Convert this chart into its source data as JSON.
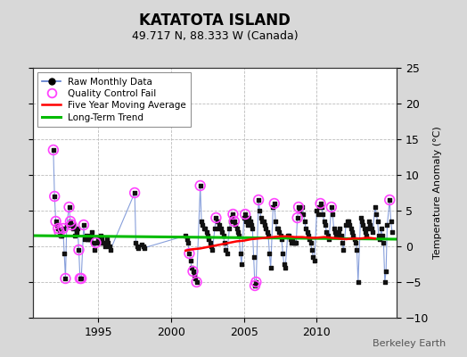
{
  "title": "KATATOTA ISLAND",
  "subtitle": "49.717 N, 88.333 W (Canada)",
  "ylabel": "Temperature Anomaly (°C)",
  "watermark": "Berkeley Earth",
  "ylim": [
    -10,
    25
  ],
  "yticks": [
    -10,
    -5,
    0,
    5,
    10,
    15,
    20,
    25
  ],
  "xlim": [
    1990.5,
    2015.5
  ],
  "xticks": [
    1995,
    2000,
    2005,
    2010
  ],
  "bg_color": "#d8d8d8",
  "plot_bg_color": "#ffffff",
  "raw_line_color": "#5577cc",
  "raw_line_alpha": 0.7,
  "raw_dot_color": "#111111",
  "qc_fail_color": "#ff44ff",
  "moving_avg_color": "#ff0000",
  "trend_color": "#00bb00",
  "raw_monthly_data": [
    [
      1991.917,
      13.5
    ],
    [
      1992.0,
      7.0
    ],
    [
      1992.083,
      3.5
    ],
    [
      1992.167,
      3.0
    ],
    [
      1992.25,
      2.5
    ],
    [
      1992.333,
      2.0
    ],
    [
      1992.417,
      1.5
    ],
    [
      1992.5,
      1.5
    ],
    [
      1992.583,
      2.5
    ],
    [
      1992.667,
      -1.0
    ],
    [
      1992.75,
      -4.5
    ],
    [
      1992.833,
      3.0
    ],
    [
      1993.0,
      5.5
    ],
    [
      1993.083,
      3.5
    ],
    [
      1993.167,
      3.0
    ],
    [
      1993.25,
      2.5
    ],
    [
      1993.333,
      3.0
    ],
    [
      1993.417,
      1.5
    ],
    [
      1993.5,
      2.0
    ],
    [
      1993.583,
      2.5
    ],
    [
      1993.667,
      -0.5
    ],
    [
      1993.75,
      -4.5
    ],
    [
      1993.833,
      -4.5
    ],
    [
      1994.0,
      3.0
    ],
    [
      1994.083,
      1.0
    ],
    [
      1994.167,
      1.5
    ],
    [
      1994.25,
      1.0
    ],
    [
      1994.333,
      1.0
    ],
    [
      1994.417,
      1.0
    ],
    [
      1994.5,
      1.5
    ],
    [
      1994.583,
      2.0
    ],
    [
      1994.667,
      0.5
    ],
    [
      1994.75,
      -0.5
    ],
    [
      1994.833,
      0.5
    ],
    [
      1995.0,
      1.0
    ],
    [
      1995.083,
      0.5
    ],
    [
      1995.167,
      1.5
    ],
    [
      1995.25,
      1.0
    ],
    [
      1995.333,
      0.5
    ],
    [
      1995.417,
      0.5
    ],
    [
      1995.5,
      0.0
    ],
    [
      1995.583,
      1.0
    ],
    [
      1995.667,
      0.5
    ],
    [
      1995.75,
      0.0
    ],
    [
      1995.833,
      -0.5
    ],
    [
      1997.5,
      7.5
    ],
    [
      1997.583,
      0.5
    ],
    [
      1997.667,
      0.0
    ],
    [
      1997.75,
      -0.3
    ],
    [
      1998.0,
      0.2
    ],
    [
      1998.083,
      0.0
    ],
    [
      1998.167,
      -0.2
    ],
    [
      2001.0,
      1.5
    ],
    [
      2001.083,
      1.0
    ],
    [
      2001.167,
      0.5
    ],
    [
      2001.25,
      -1.0
    ],
    [
      2001.333,
      -2.0
    ],
    [
      2001.417,
      -3.0
    ],
    [
      2001.5,
      -3.5
    ],
    [
      2001.583,
      -4.0
    ],
    [
      2001.667,
      -4.5
    ],
    [
      2001.75,
      -5.0
    ],
    [
      2002.0,
      8.5
    ],
    [
      2002.083,
      3.5
    ],
    [
      2002.167,
      3.0
    ],
    [
      2002.25,
      2.5
    ],
    [
      2002.333,
      2.5
    ],
    [
      2002.417,
      2.0
    ],
    [
      2002.5,
      1.5
    ],
    [
      2002.583,
      1.0
    ],
    [
      2002.667,
      0.5
    ],
    [
      2002.75,
      0.0
    ],
    [
      2002.833,
      -0.5
    ],
    [
      2003.0,
      2.5
    ],
    [
      2003.083,
      4.0
    ],
    [
      2003.167,
      3.5
    ],
    [
      2003.25,
      2.5
    ],
    [
      2003.333,
      3.0
    ],
    [
      2003.417,
      2.5
    ],
    [
      2003.5,
      2.0
    ],
    [
      2003.583,
      1.5
    ],
    [
      2003.667,
      0.5
    ],
    [
      2003.75,
      -0.5
    ],
    [
      2003.833,
      -1.0
    ],
    [
      2004.0,
      2.5
    ],
    [
      2004.083,
      3.5
    ],
    [
      2004.167,
      4.0
    ],
    [
      2004.25,
      4.5
    ],
    [
      2004.333,
      3.5
    ],
    [
      2004.417,
      3.0
    ],
    [
      2004.5,
      2.5
    ],
    [
      2004.583,
      2.0
    ],
    [
      2004.667,
      1.5
    ],
    [
      2004.75,
      -1.0
    ],
    [
      2004.833,
      -2.5
    ],
    [
      2005.0,
      4.0
    ],
    [
      2005.083,
      4.5
    ],
    [
      2005.167,
      3.5
    ],
    [
      2005.25,
      3.0
    ],
    [
      2005.333,
      4.0
    ],
    [
      2005.417,
      3.5
    ],
    [
      2005.5,
      3.0
    ],
    [
      2005.583,
      2.5
    ],
    [
      2005.667,
      -1.5
    ],
    [
      2005.75,
      -5.5
    ],
    [
      2005.833,
      -5.0
    ],
    [
      2006.0,
      6.5
    ],
    [
      2006.083,
      5.0
    ],
    [
      2006.167,
      4.0
    ],
    [
      2006.25,
      3.5
    ],
    [
      2006.333,
      3.5
    ],
    [
      2006.417,
      3.0
    ],
    [
      2006.5,
      2.5
    ],
    [
      2006.583,
      2.0
    ],
    [
      2006.667,
      1.5
    ],
    [
      2006.75,
      -1.0
    ],
    [
      2006.833,
      -3.0
    ],
    [
      2007.0,
      5.5
    ],
    [
      2007.083,
      6.0
    ],
    [
      2007.167,
      3.5
    ],
    [
      2007.25,
      2.5
    ],
    [
      2007.333,
      2.5
    ],
    [
      2007.417,
      2.0
    ],
    [
      2007.5,
      1.5
    ],
    [
      2007.583,
      1.0
    ],
    [
      2007.667,
      -1.0
    ],
    [
      2007.75,
      -2.5
    ],
    [
      2007.833,
      -3.0
    ],
    [
      2008.0,
      1.5
    ],
    [
      2008.083,
      1.5
    ],
    [
      2008.167,
      1.0
    ],
    [
      2008.25,
      0.5
    ],
    [
      2008.333,
      1.0
    ],
    [
      2008.417,
      0.5
    ],
    [
      2008.5,
      0.5
    ],
    [
      2008.583,
      0.5
    ],
    [
      2008.667,
      4.0
    ],
    [
      2008.75,
      5.5
    ],
    [
      2008.833,
      5.0
    ],
    [
      2009.0,
      5.5
    ],
    [
      2009.083,
      4.5
    ],
    [
      2009.167,
      3.5
    ],
    [
      2009.25,
      2.5
    ],
    [
      2009.333,
      2.0
    ],
    [
      2009.417,
      1.5
    ],
    [
      2009.5,
      1.0
    ],
    [
      2009.583,
      0.5
    ],
    [
      2009.667,
      -0.5
    ],
    [
      2009.75,
      -1.5
    ],
    [
      2009.833,
      -2.0
    ],
    [
      2010.0,
      5.0
    ],
    [
      2010.083,
      4.5
    ],
    [
      2010.167,
      5.5
    ],
    [
      2010.25,
      6.0
    ],
    [
      2010.333,
      5.5
    ],
    [
      2010.417,
      4.5
    ],
    [
      2010.5,
      3.5
    ],
    [
      2010.583,
      3.0
    ],
    [
      2010.667,
      2.0
    ],
    [
      2010.75,
      1.5
    ],
    [
      2010.833,
      1.0
    ],
    [
      2011.0,
      5.5
    ],
    [
      2011.083,
      4.5
    ],
    [
      2011.167,
      2.5
    ],
    [
      2011.25,
      2.0
    ],
    [
      2011.333,
      1.5
    ],
    [
      2011.417,
      1.5
    ],
    [
      2011.5,
      2.0
    ],
    [
      2011.583,
      2.5
    ],
    [
      2011.667,
      1.5
    ],
    [
      2011.75,
      0.5
    ],
    [
      2011.833,
      -0.5
    ],
    [
      2012.0,
      3.0
    ],
    [
      2012.083,
      3.5
    ],
    [
      2012.167,
      3.5
    ],
    [
      2012.25,
      3.0
    ],
    [
      2012.333,
      2.5
    ],
    [
      2012.417,
      2.0
    ],
    [
      2012.5,
      1.5
    ],
    [
      2012.583,
      1.0
    ],
    [
      2012.667,
      0.5
    ],
    [
      2012.75,
      -0.5
    ],
    [
      2012.833,
      -5.0
    ],
    [
      2013.0,
      4.0
    ],
    [
      2013.083,
      3.5
    ],
    [
      2013.167,
      3.0
    ],
    [
      2013.25,
      2.5
    ],
    [
      2013.333,
      2.0
    ],
    [
      2013.417,
      1.5
    ],
    [
      2013.5,
      2.5
    ],
    [
      2013.583,
      3.5
    ],
    [
      2013.667,
      3.0
    ],
    [
      2013.75,
      2.5
    ],
    [
      2013.833,
      2.0
    ],
    [
      2014.0,
      5.5
    ],
    [
      2014.083,
      4.5
    ],
    [
      2014.167,
      3.5
    ],
    [
      2014.25,
      1.5
    ],
    [
      2014.333,
      1.0
    ],
    [
      2014.417,
      2.5
    ],
    [
      2014.5,
      1.5
    ],
    [
      2014.583,
      0.5
    ],
    [
      2014.667,
      -5.0
    ],
    [
      2014.75,
      -3.5
    ],
    [
      2014.833,
      3.0
    ],
    [
      2015.0,
      6.5
    ],
    [
      2015.083,
      3.5
    ],
    [
      2015.167,
      2.0
    ]
  ],
  "qc_fail_points": [
    [
      1991.917,
      13.5
    ],
    [
      1992.0,
      7.0
    ],
    [
      1992.083,
      3.5
    ],
    [
      1992.25,
      2.5
    ],
    [
      1992.333,
      2.0
    ],
    [
      1992.583,
      2.5
    ],
    [
      1992.75,
      -4.5
    ],
    [
      1993.0,
      5.5
    ],
    [
      1993.083,
      3.5
    ],
    [
      1993.167,
      3.0
    ],
    [
      1993.667,
      -0.5
    ],
    [
      1993.75,
      -4.5
    ],
    [
      1993.833,
      -4.5
    ],
    [
      1994.0,
      3.0
    ],
    [
      1994.833,
      0.5
    ],
    [
      1997.5,
      7.5
    ],
    [
      2001.25,
      -1.0
    ],
    [
      2001.5,
      -3.5
    ],
    [
      2001.75,
      -5.0
    ],
    [
      2002.0,
      8.5
    ],
    [
      2003.083,
      4.0
    ],
    [
      2004.25,
      4.5
    ],
    [
      2004.333,
      3.5
    ],
    [
      2005.083,
      4.5
    ],
    [
      2005.75,
      -5.5
    ],
    [
      2005.833,
      -5.0
    ],
    [
      2006.0,
      6.5
    ],
    [
      2007.083,
      6.0
    ],
    [
      2008.667,
      4.0
    ],
    [
      2008.75,
      5.5
    ],
    [
      2010.25,
      6.0
    ],
    [
      2011.0,
      5.5
    ],
    [
      2015.0,
      6.5
    ]
  ],
  "five_year_avg": [
    [
      2001.0,
      -0.6
    ],
    [
      2001.5,
      -0.4
    ],
    [
      2002.0,
      -0.3
    ],
    [
      2002.5,
      -0.1
    ],
    [
      2003.0,
      0.1
    ],
    [
      2003.5,
      0.3
    ],
    [
      2004.0,
      0.5
    ],
    [
      2004.5,
      0.7
    ],
    [
      2005.0,
      0.8
    ],
    [
      2005.5,
      1.0
    ],
    [
      2006.0,
      1.1
    ],
    [
      2006.5,
      1.2
    ],
    [
      2007.0,
      1.3
    ],
    [
      2007.5,
      1.4
    ],
    [
      2008.0,
      1.4
    ],
    [
      2008.5,
      1.3
    ],
    [
      2009.0,
      1.3
    ],
    [
      2009.5,
      1.2
    ],
    [
      2010.0,
      1.2
    ],
    [
      2010.5,
      1.3
    ],
    [
      2011.0,
      1.2
    ],
    [
      2011.5,
      1.1
    ],
    [
      2012.0,
      1.0
    ],
    [
      2012.5,
      1.1
    ],
    [
      2013.0,
      1.1
    ],
    [
      2013.5,
      1.2
    ],
    [
      2014.0,
      1.1
    ]
  ],
  "trend_x": [
    1990.5,
    2015.5
  ],
  "trend_y": [
    1.5,
    1.0
  ],
  "legend_loc": "upper left",
  "title_fontsize": 12,
  "subtitle_fontsize": 9,
  "tick_fontsize": 9,
  "ylabel_fontsize": 8,
  "watermark_fontsize": 8
}
